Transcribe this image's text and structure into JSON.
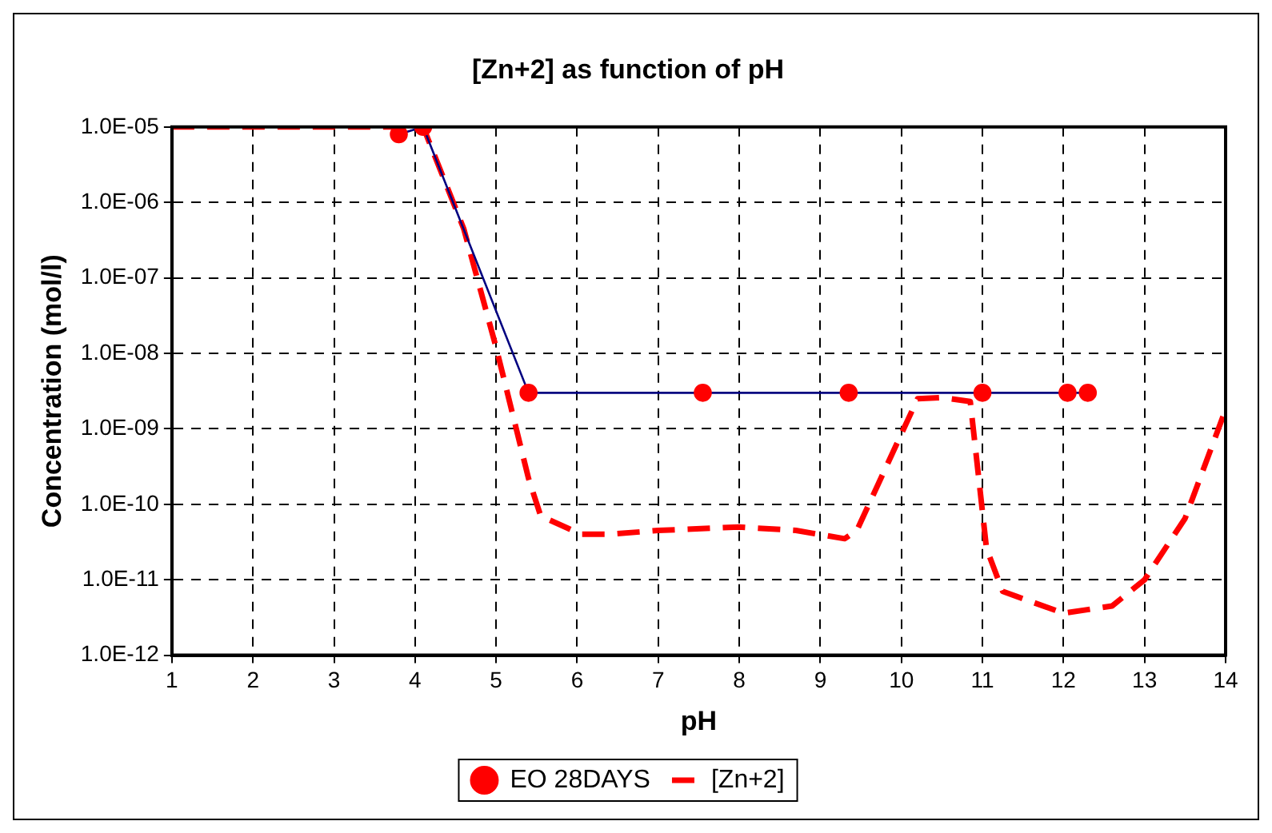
{
  "chart_data": {
    "type": "line",
    "title": "[Zn+2] as function of pH",
    "xlabel": "pH",
    "ylabel": "Concentration (mol/l)",
    "log": "y",
    "grid": true,
    "legend": "bottom",
    "xlim": [
      1,
      14
    ],
    "xticks": [
      1,
      2,
      3,
      4,
      5,
      6,
      7,
      8,
      9,
      10,
      11,
      12,
      13,
      14
    ],
    "ylim": [
      1e-12,
      1e-05
    ],
    "yticks": [
      {
        "value": 1e-12,
        "label": "1.0E-12"
      },
      {
        "value": 1e-11,
        "label": "1.0E-11"
      },
      {
        "value": 1e-10,
        "label": "1.0E-10"
      },
      {
        "value": 1e-09,
        "label": "1.0E-09"
      },
      {
        "value": 1e-08,
        "label": "1.0E-08"
      },
      {
        "value": 1e-07,
        "label": "1.0E-07"
      },
      {
        "value": 1e-06,
        "label": "1.0E-06"
      },
      {
        "value": 1e-05,
        "label": "1.0E-05"
      }
    ],
    "series": [
      {
        "name": "EO 28DAYS",
        "color": "#000080",
        "marker": "circle",
        "line_style": "solid",
        "x": [
          3.8,
          4.1,
          5.4,
          7.55,
          9.35,
          11.0,
          12.05,
          12.3
        ],
        "values": [
          8e-06,
          1e-05,
          3e-09,
          3e-09,
          3e-09,
          3e-09,
          3e-09,
          3e-09
        ]
      },
      {
        "name": "[Zn+2]",
        "color": "#ff0000",
        "marker": "none",
        "line_style": "dashed",
        "x": [
          1,
          4.1,
          4.6,
          5.0,
          5.4,
          5.55,
          6.05,
          6.4,
          7,
          8,
          8.7,
          9.3,
          9.45,
          10.2,
          10.5,
          10.85,
          11.05,
          11.25,
          12,
          12.6,
          13,
          13.5,
          14
        ],
        "values": [
          1e-05,
          1e-05,
          4.5e-07,
          1.2e-08,
          2.2e-10,
          7e-11,
          4e-11,
          4e-11,
          4.5e-11,
          5e-11,
          4.5e-11,
          3.5e-11,
          4.5e-11,
          2.5e-09,
          2.6e-09,
          2.3e-09,
          2.6e-11,
          7e-12,
          3.6e-12,
          4.5e-12,
          1e-11,
          6.5e-11,
          1.8e-09
        ]
      }
    ]
  }
}
